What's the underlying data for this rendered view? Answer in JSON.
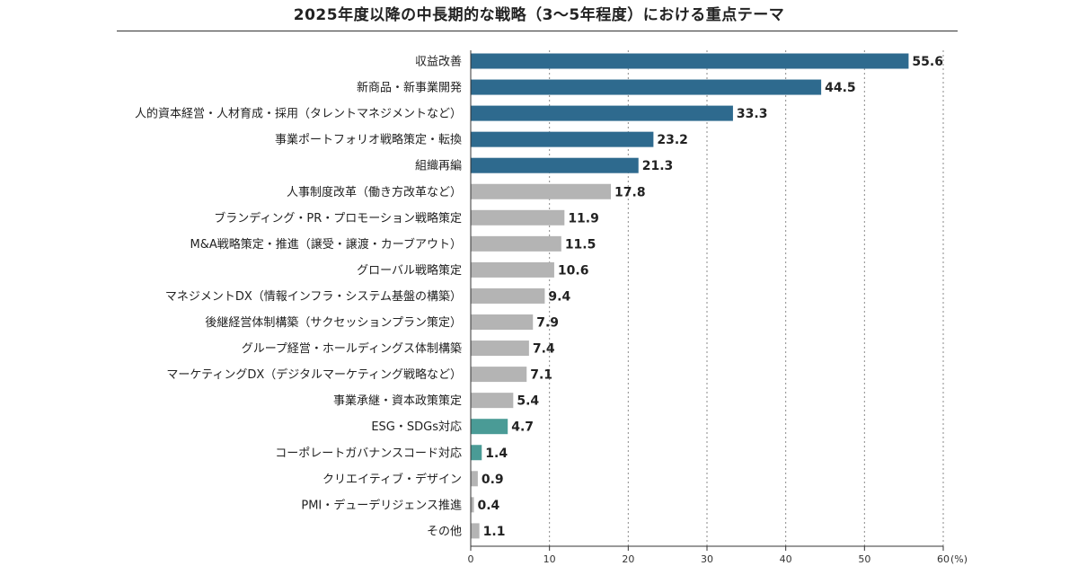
{
  "chart_data": {
    "type": "bar",
    "orientation": "horizontal",
    "title": "2025年度以降の中長期的な戦略（3〜5年程度）における重点テーマ",
    "xlabel": "",
    "ylabel": "",
    "unit_label": "(%)",
    "xlim": [
      0,
      60
    ],
    "xticks": [
      "0",
      "10",
      "20",
      "30",
      "40",
      "50",
      "60"
    ],
    "grid": true,
    "categories": [
      "収益改善",
      "新商品・新事業開発",
      "人的資本経営・人材育成・採用（タレントマネジメントなど）",
      "事業ポートフォリオ戦略策定・転換",
      "組織再編",
      "人事制度改革（働き方改革など）",
      "ブランディング・PR・プロモーション戦略策定",
      "M&A戦略策定・推進（譲受・譲渡・カーブアウト）",
      "グローバル戦略策定",
      "マネジメントDX（情報インフラ・システム基盤の構築）",
      "後継経営体制構築（サクセッションプラン策定）",
      "グループ経営・ホールディングス体制構築",
      "マーケティングDX（デジタルマーケティング戦略など）",
      "事業承継・資本政策策定",
      "ESG・SDGs対応",
      "コーポレートガバナンスコード対応",
      "クリエイティブ・デザイン",
      "PMI・デューデリジェンス推進",
      "その他"
    ],
    "values": [
      55.6,
      44.5,
      33.3,
      23.2,
      21.3,
      17.8,
      11.9,
      11.5,
      10.6,
      9.4,
      7.9,
      7.4,
      7.1,
      5.4,
      4.7,
      1.4,
      0.9,
      0.4,
      1.1
    ],
    "value_labels": [
      "55.6",
      "44.5",
      "33.3",
      "23.2",
      "21.3",
      "17.8",
      "11.9",
      "11.5",
      "10.6",
      "9.4",
      "7.9",
      "7.4",
      "7.1",
      "5.4",
      "4.7",
      "1.4",
      "0.9",
      "0.4",
      "1.1"
    ],
    "groups": [
      "top",
      "top",
      "top",
      "top",
      "top",
      "other",
      "other",
      "other",
      "other",
      "other",
      "other",
      "other",
      "other",
      "other",
      "esg",
      "esg",
      "other",
      "other",
      "other"
    ],
    "colors": {
      "top": "#2e6a8e",
      "esg": "#4a9b96",
      "other": "#b4b4b4"
    }
  }
}
